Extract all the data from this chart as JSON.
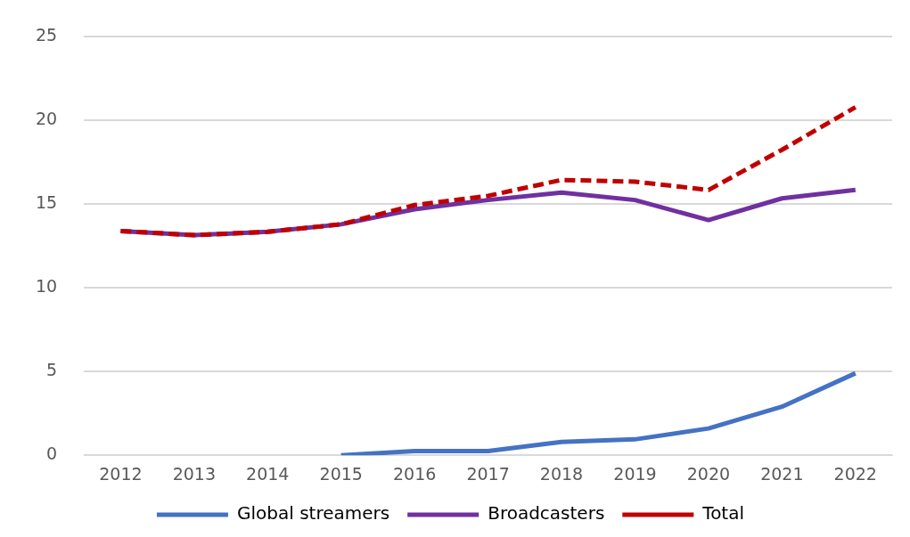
{
  "chart_data": {
    "type": "line",
    "categories": [
      "2012",
      "2013",
      "2014",
      "2015",
      "2016",
      "2017",
      "2018",
      "2019",
      "2020",
      "2021",
      "2022"
    ],
    "series": [
      {
        "name": "Global streamers",
        "color": "#4472c4",
        "values": [
          null,
          null,
          null,
          0,
          0.25,
          0.25,
          0.8,
          0.95,
          1.6,
          2.9,
          4.9
        ]
      },
      {
        "name": "Broadcasters",
        "color": "#7030a0",
        "values": [
          13.4,
          13.15,
          13.35,
          13.8,
          14.7,
          15.25,
          15.7,
          15.25,
          14.05,
          15.35,
          15.85
        ]
      },
      {
        "name": "Total",
        "color": "#c00000",
        "line_style": "dashed",
        "values": [
          13.4,
          13.15,
          13.35,
          13.8,
          14.95,
          15.5,
          16.45,
          16.35,
          15.85,
          18.25,
          20.8
        ]
      }
    ],
    "ylim": [
      0,
      25
    ],
    "yticks": [
      0,
      5,
      10,
      15,
      20,
      25
    ],
    "grid": "y",
    "legend": "bottom",
    "marker": "none"
  }
}
